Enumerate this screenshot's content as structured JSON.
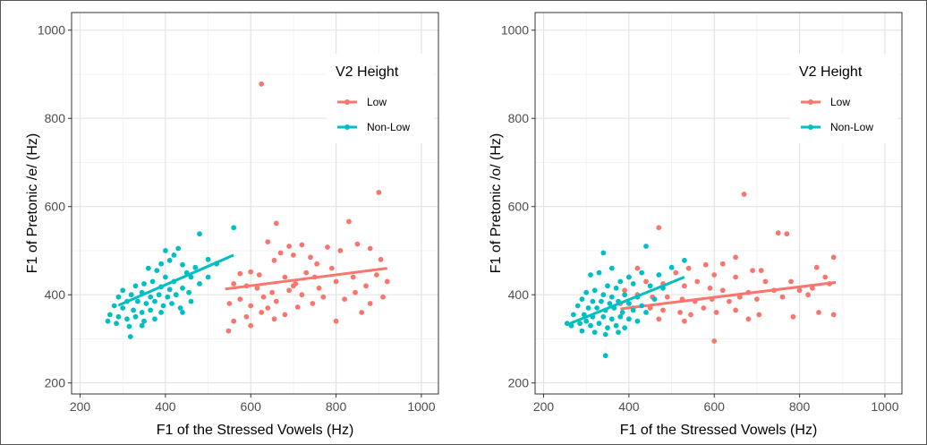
{
  "chart_data": [
    {
      "type": "scatter",
      "xlabel": "F1 of  the Stressed Vowels (Hz)",
      "ylabel": "F1 of Pretonic /e/ (Hz)",
      "xlim": [
        180,
        1040
      ],
      "ylim": [
        175,
        1040
      ],
      "xticks": [
        200,
        400,
        600,
        800,
        1000
      ],
      "yticks": [
        200,
        400,
        600,
        800,
        1000
      ],
      "grid": true,
      "legend": {
        "title": "V2 Height",
        "placement": "top-right"
      },
      "series": [
        {
          "name": "Low",
          "color": "#F8766D",
          "fit": [
            [
              540,
              413
            ],
            [
              920,
              460
            ]
          ],
          "points": [
            [
              625,
              878
            ],
            [
              900,
              632
            ],
            [
              830,
              566
            ],
            [
              660,
              562
            ],
            [
              690,
              510
            ],
            [
              720,
              513
            ],
            [
              780,
              508
            ],
            [
              850,
              515
            ],
            [
              640,
              520
            ],
            [
              600,
              452
            ],
            [
              575,
              448
            ],
            [
              620,
              445
            ],
            [
              655,
              478
            ],
            [
              670,
              495
            ],
            [
              700,
              490
            ],
            [
              740,
              485
            ],
            [
              755,
              470
            ],
            [
              790,
              460
            ],
            [
              810,
              500
            ],
            [
              880,
              505
            ],
            [
              905,
              480
            ],
            [
              920,
              430
            ],
            [
              560,
              425
            ],
            [
              590,
              420
            ],
            [
              615,
              415
            ],
            [
              650,
              405
            ],
            [
              680,
              440
            ],
            [
              705,
              425
            ],
            [
              730,
              450
            ],
            [
              760,
              415
            ],
            [
              800,
              430
            ],
            [
              840,
              440
            ],
            [
              870,
              420
            ],
            [
              895,
              445
            ],
            [
              550,
              380
            ],
            [
              575,
              390
            ],
            [
              600,
              375
            ],
            [
              630,
              395
            ],
            [
              660,
              385
            ],
            [
              690,
              410
            ],
            [
              720,
              400
            ],
            [
              745,
              380
            ],
            [
              770,
              395
            ],
            [
              820,
              390
            ],
            [
              845,
              405
            ],
            [
              880,
              380
            ],
            [
              910,
              395
            ],
            [
              560,
              340
            ],
            [
              590,
              350
            ],
            [
              625,
              360
            ],
            [
              655,
              345
            ],
            [
              680,
              355
            ],
            [
              710,
              372
            ],
            [
              800,
              340
            ],
            [
              860,
              360
            ],
            [
              548,
              318
            ],
            [
              600,
              330
            ],
            [
              640,
              370
            ],
            [
              700,
              420
            ],
            [
              750,
              440
            ]
          ]
        },
        {
          "name": "Non-Low",
          "color": "#00BFC4",
          "fit": [
            [
              290,
              376
            ],
            [
              560,
              490
            ]
          ],
          "points": [
            [
              560,
              552
            ],
            [
              480,
              538
            ],
            [
              430,
              505
            ],
            [
              400,
              500
            ],
            [
              420,
              490
            ],
            [
              390,
              470
            ],
            [
              410,
              478
            ],
            [
              440,
              468
            ],
            [
              360,
              460
            ],
            [
              380,
              455
            ],
            [
              500,
              480
            ],
            [
              520,
              470
            ],
            [
              470,
              462
            ],
            [
              450,
              450
            ],
            [
              400,
              440
            ],
            [
              420,
              430
            ],
            [
              370,
              430
            ],
            [
              350,
              425
            ],
            [
              330,
              420
            ],
            [
              390,
              418
            ],
            [
              410,
              412
            ],
            [
              440,
              415
            ],
            [
              460,
              440
            ],
            [
              480,
              425
            ],
            [
              300,
              410
            ],
            [
              320,
              400
            ],
            [
              345,
              405
            ],
            [
              365,
              395
            ],
            [
              385,
              400
            ],
            [
              405,
              395
            ],
            [
              425,
              400
            ],
            [
              455,
              405
            ],
            [
              290,
              395
            ],
            [
              310,
              385
            ],
            [
              335,
              385
            ],
            [
              355,
              380
            ],
            [
              375,
              385
            ],
            [
              395,
              375
            ],
            [
              415,
              380
            ],
            [
              435,
              370
            ],
            [
              280,
              375
            ],
            [
              300,
              370
            ],
            [
              325,
              365
            ],
            [
              345,
              360
            ],
            [
              365,
              365
            ],
            [
              390,
              360
            ],
            [
              270,
              355
            ],
            [
              290,
              350
            ],
            [
              310,
              345
            ],
            [
              330,
              350
            ],
            [
              350,
              340
            ],
            [
              375,
              345
            ],
            [
              265,
              340
            ],
            [
              285,
              335
            ],
            [
              315,
              328
            ],
            [
              345,
              330
            ],
            [
              318,
              305
            ],
            [
              440,
              360
            ],
            [
              460,
              385
            ],
            [
              500,
              440
            ]
          ]
        }
      ]
    },
    {
      "type": "scatter",
      "xlabel": "F1 of  the Stressed Vowels (Hz)",
      "ylabel": "F1 of Pretonic /o/ (Hz)",
      "xlim": [
        180,
        1040
      ],
      "ylim": [
        175,
        1040
      ],
      "xticks": [
        200,
        400,
        600,
        800,
        1000
      ],
      "yticks": [
        200,
        400,
        600,
        800,
        1000
      ],
      "grid": true,
      "legend": {
        "title": "V2 Height",
        "placement": "top-right"
      },
      "series": [
        {
          "name": "Low",
          "color": "#F8766D",
          "fit": [
            [
              380,
              368
            ],
            [
              885,
              428
            ]
          ],
          "points": [
            [
              670,
              628
            ],
            [
              750,
              540
            ],
            [
              770,
              538
            ],
            [
              470,
              552
            ],
            [
              880,
              485
            ],
            [
              840,
              462
            ],
            [
              650,
              485
            ],
            [
              620,
              470
            ],
            [
              580,
              468
            ],
            [
              690,
              455
            ],
            [
              710,
              455
            ],
            [
              540,
              460
            ],
            [
              420,
              460
            ],
            [
              510,
              450
            ],
            [
              600,
              445
            ],
            [
              650,
              440
            ],
            [
              720,
              430
            ],
            [
              780,
              430
            ],
            [
              860,
              440
            ],
            [
              400,
              440
            ],
            [
              440,
              430
            ],
            [
              480,
              425
            ],
            [
              530,
              420
            ],
            [
              560,
              430
            ],
            [
              590,
              415
            ],
            [
              620,
              410
            ],
            [
              680,
              405
            ],
            [
              740,
              410
            ],
            [
              800,
              410
            ],
            [
              830,
              415
            ],
            [
              870,
              425
            ],
            [
              390,
              410
            ],
            [
              420,
              400
            ],
            [
              455,
              395
            ],
            [
              490,
              395
            ],
            [
              525,
              390
            ],
            [
              555,
              385
            ],
            [
              595,
              390
            ],
            [
              635,
              385
            ],
            [
              660,
              395
            ],
            [
              700,
              390
            ],
            [
              760,
              395
            ],
            [
              820,
              400
            ],
            [
              380,
              380
            ],
            [
              410,
              370
            ],
            [
              450,
              370
            ],
            [
              480,
              365
            ],
            [
              520,
              360
            ],
            [
              545,
              355
            ],
            [
              575,
              370
            ],
            [
              605,
              360
            ],
            [
              650,
              365
            ],
            [
              705,
              355
            ],
            [
              785,
              350
            ],
            [
              845,
              360
            ],
            [
              880,
              355
            ],
            [
              470,
              345
            ],
            [
              530,
              340
            ],
            [
              600,
              295
            ],
            [
              680,
              345
            ]
          ]
        },
        {
          "name": "Non-Low",
          "color": "#00BFC4",
          "fit": [
            [
              255,
              332
            ],
            [
              530,
              440
            ]
          ],
          "points": [
            [
              340,
              495
            ],
            [
              440,
              510
            ],
            [
              530,
              478
            ],
            [
              500,
              462
            ],
            [
              470,
              445
            ],
            [
              430,
              450
            ],
            [
              400,
              440
            ],
            [
              360,
              460
            ],
            [
              330,
              450
            ],
            [
              310,
              445
            ],
            [
              380,
              430
            ],
            [
              410,
              425
            ],
            [
              450,
              420
            ],
            [
              480,
              415
            ],
            [
              350,
              420
            ],
            [
              370,
              415
            ],
            [
              320,
              410
            ],
            [
              300,
              405
            ],
            [
              340,
              400
            ],
            [
              360,
              395
            ],
            [
              390,
              400
            ],
            [
              420,
              395
            ],
            [
              290,
              390
            ],
            [
              315,
              385
            ],
            [
              335,
              385
            ],
            [
              355,
              380
            ],
            [
              375,
              385
            ],
            [
              400,
              380
            ],
            [
              430,
              375
            ],
            [
              460,
              390
            ],
            [
              280,
              375
            ],
            [
              305,
              370
            ],
            [
              325,
              370
            ],
            [
              345,
              365
            ],
            [
              365,
              370
            ],
            [
              385,
              360
            ],
            [
              410,
              365
            ],
            [
              270,
              355
            ],
            [
              295,
              355
            ],
            [
              315,
              350
            ],
            [
              340,
              350
            ],
            [
              360,
              345
            ],
            [
              380,
              350
            ],
            [
              400,
              345
            ],
            [
              255,
              335
            ],
            [
              285,
              335
            ],
            [
              310,
              330
            ],
            [
              330,
              335
            ],
            [
              350,
              325
            ],
            [
              370,
              330
            ],
            [
              290,
              318
            ],
            [
              320,
              315
            ],
            [
              345,
              310
            ],
            [
              375,
              315
            ],
            [
              345,
              262
            ],
            [
              265,
              330
            ],
            [
              420,
              340
            ],
            [
              440,
              360
            ],
            [
              390,
              325
            ],
            [
              300,
              340
            ]
          ]
        }
      ]
    }
  ]
}
